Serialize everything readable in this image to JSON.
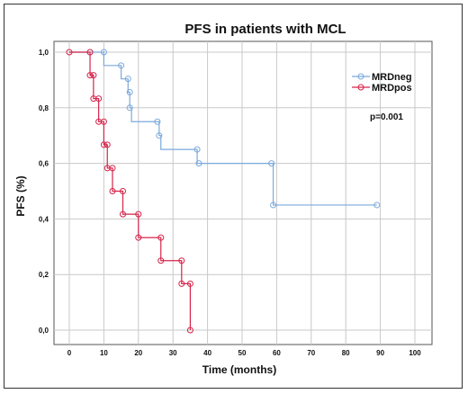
{
  "chart_data": {
    "type": "line",
    "step": true,
    "title": "PFS in patients with MCL",
    "xlabel": "Time (months)",
    "ylabel": "PFS (%)",
    "xlim": [
      0,
      100
    ],
    "ylim": [
      0,
      1
    ],
    "x_ticks": [
      0,
      10,
      20,
      30,
      40,
      50,
      60,
      70,
      80,
      90,
      100
    ],
    "y_ticks": [
      0.0,
      0.2,
      0.4,
      0.6,
      0.8,
      1.0
    ],
    "y_tick_labels": [
      "0,0",
      "0,2",
      "0,4",
      "0,6",
      "0,8",
      "1,0"
    ],
    "grid": true,
    "legend_position": "top-right",
    "annotation": "p=0.001",
    "series": [
      {
        "name": "MRDneg",
        "color": "#7aa9dc",
        "steps": [
          [
            0,
            1.0
          ],
          [
            10,
            0.952
          ],
          [
            15,
            0.904
          ],
          [
            17,
            0.856
          ],
          [
            17.5,
            0.8
          ],
          [
            18,
            0.75
          ],
          [
            26,
            0.7
          ],
          [
            26.5,
            0.65
          ],
          [
            37,
            0.6
          ],
          [
            59,
            0.45
          ],
          [
            89,
            0.45
          ]
        ],
        "censored": [
          [
            6,
            1.0
          ],
          [
            10,
            1.0
          ],
          [
            15,
            0.952
          ],
          [
            17,
            0.904
          ],
          [
            17.5,
            0.856
          ],
          [
            17.5,
            0.8
          ],
          [
            25.5,
            0.75
          ],
          [
            26,
            0.7
          ],
          [
            37,
            0.65
          ],
          [
            37.5,
            0.6
          ],
          [
            58.5,
            0.6
          ],
          [
            59,
            0.45
          ],
          [
            89,
            0.45
          ]
        ]
      },
      {
        "name": "MRDpos",
        "color": "#d6244a",
        "steps": [
          [
            0,
            1.0
          ],
          [
            6,
            0.917
          ],
          [
            7,
            0.833
          ],
          [
            8.5,
            0.75
          ],
          [
            10,
            0.667
          ],
          [
            11,
            0.583
          ],
          [
            12.5,
            0.5
          ],
          [
            15.5,
            0.417
          ],
          [
            20,
            0.333
          ],
          [
            26.5,
            0.25
          ],
          [
            32.5,
            0.167
          ],
          [
            35,
            0.0
          ]
        ],
        "censored": [
          [
            0,
            1.0
          ],
          [
            6,
            1.0
          ],
          [
            6,
            0.917
          ],
          [
            7,
            0.917
          ],
          [
            7,
            0.833
          ],
          [
            8.5,
            0.833
          ],
          [
            8.5,
            0.75
          ],
          [
            10,
            0.75
          ],
          [
            10,
            0.667
          ],
          [
            11,
            0.667
          ],
          [
            11,
            0.583
          ],
          [
            12.5,
            0.583
          ],
          [
            12.5,
            0.5
          ],
          [
            15.5,
            0.5
          ],
          [
            15.5,
            0.417
          ],
          [
            20,
            0.417
          ],
          [
            20,
            0.333
          ],
          [
            26.5,
            0.333
          ],
          [
            26.5,
            0.25
          ],
          [
            32.5,
            0.25
          ],
          [
            32.5,
            0.167
          ],
          [
            35,
            0.167
          ],
          [
            35,
            0.0
          ]
        ]
      }
    ]
  }
}
